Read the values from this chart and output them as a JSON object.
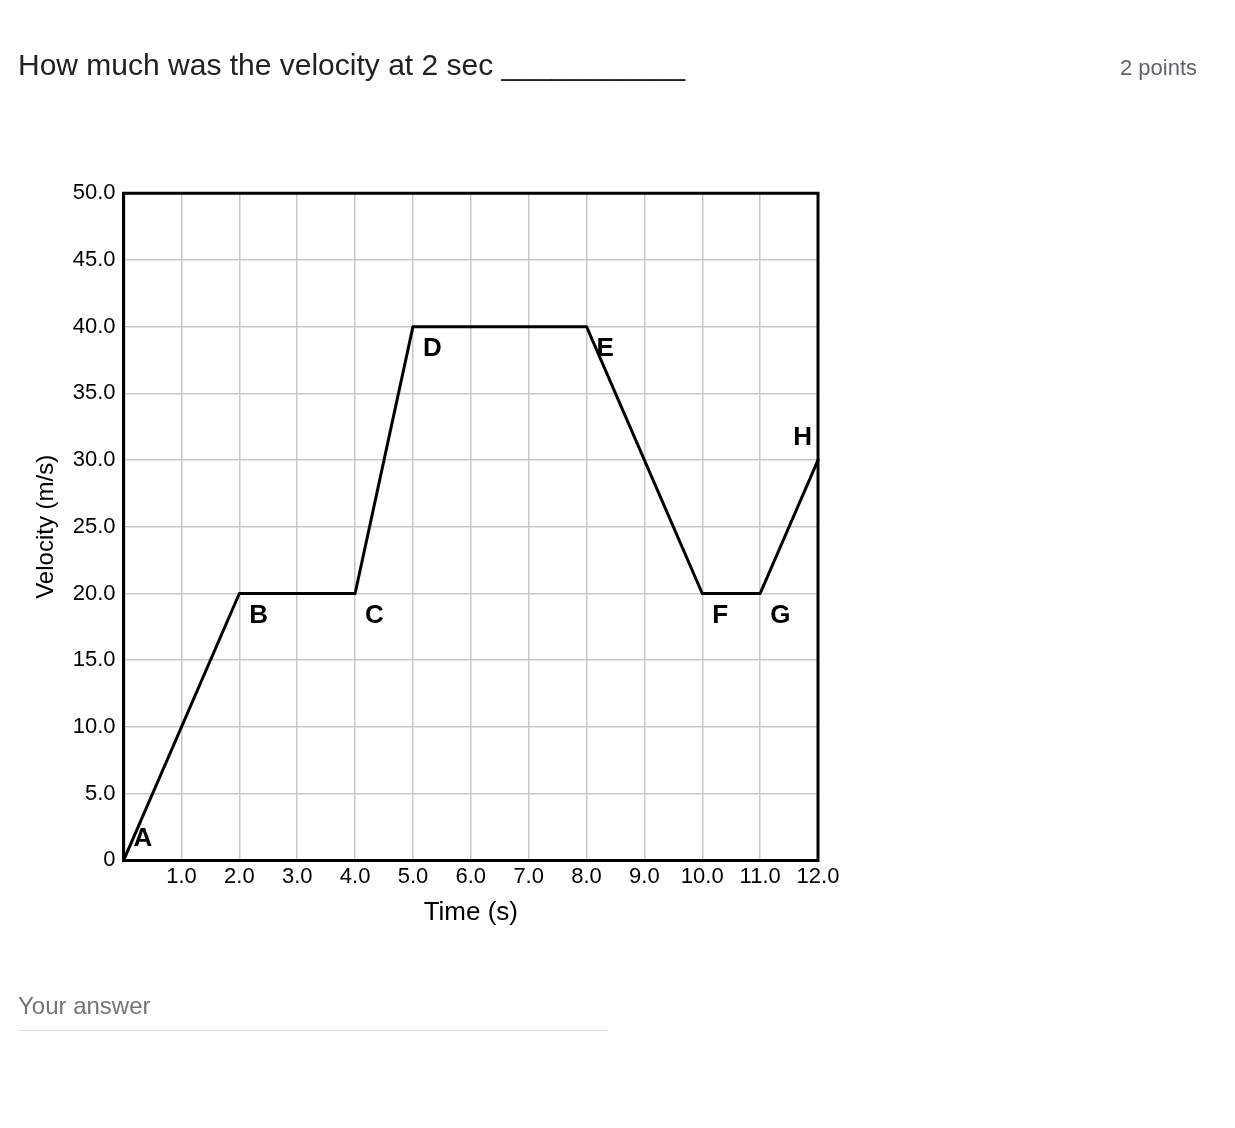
{
  "chart_data": {
    "type": "line",
    "title": "How much was the velocity at 2 sec ___________",
    "x": [
      0,
      2,
      4,
      5,
      8,
      10,
      11,
      12
    ],
    "series": [
      {
        "color": "#000000",
        "values": [
          0,
          20,
          20,
          40,
          40,
          20,
          20,
          30
        ]
      }
    ],
    "xlabel": "Time (s)",
    "ylabel": "Velocity (m/s)",
    "xlim": [
      0,
      12
    ],
    "ylim": [
      0,
      50
    ],
    "xticks": [
      {
        "value": 0,
        "label": null
      },
      {
        "value": 1,
        "label": "1.0"
      },
      {
        "value": 2,
        "label": "2.0"
      },
      {
        "value": 3,
        "label": "3.0"
      },
      {
        "value": 4,
        "label": "4.0"
      },
      {
        "value": 5,
        "label": "5.0"
      },
      {
        "value": 6,
        "label": "6.0"
      },
      {
        "value": 7,
        "label": "7.0"
      },
      {
        "value": 8,
        "label": "8.0"
      },
      {
        "value": 9,
        "label": "9.0"
      },
      {
        "value": 10,
        "label": "10.0"
      },
      {
        "value": 11,
        "label": "11.0"
      },
      {
        "value": 12,
        "label": "12.0"
      }
    ],
    "yticks": [
      0,
      {
        "value": 5,
        "label": "5.0"
      },
      {
        "value": 10,
        "label": "10.0"
      },
      {
        "value": 15,
        "label": "15.0"
      },
      {
        "value": 20,
        "label": "20.0"
      },
      {
        "value": 25,
        "label": "25.0"
      },
      {
        "value": 30,
        "label": "30.0"
      },
      {
        "value": 35,
        "label": "35.0"
      },
      {
        "value": 40,
        "label": "40.0"
      },
      {
        "value": 45,
        "label": "45.0"
      },
      {
        "value": 50,
        "label": "50.0"
      }
    ],
    "grid": true,
    "legend": false,
    "marker": "none",
    "line_style": "solid",
    "annotations": [
      {
        "text": "A",
        "x": 0,
        "y": 0
      },
      {
        "text": "B",
        "x": 2,
        "y": 20
      },
      {
        "text": "C",
        "x": 4,
        "y": 20
      },
      {
        "text": "D",
        "x": 5,
        "y": 40
      },
      {
        "text": "E",
        "x": 8,
        "y": 40
      },
      {
        "text": "F",
        "x": 10,
        "y": 20
      },
      {
        "text": "G",
        "x": 11,
        "y": 20
      },
      {
        "text": "H",
        "x": 12,
        "y": 30
      },
      "2 points",
      "Your answer"
    ]
  }
}
